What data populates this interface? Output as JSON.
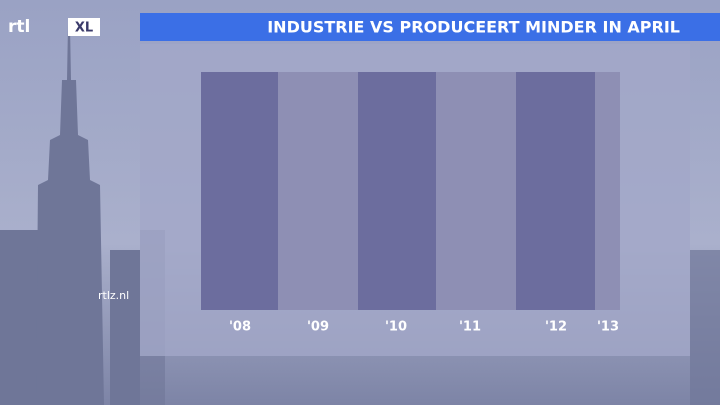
{
  "logo": {
    "main": "rtl",
    "box": "XL"
  },
  "watermark": "rtlz.nl",
  "chart_data": {
    "type": "band",
    "title": "INDUSTRIE VS PRODUCEERT MINDER IN APRIL",
    "categories": [
      "'08",
      "'09",
      "'10",
      "'11",
      "'12",
      "'13"
    ],
    "colors": [
      "#6c6d9e",
      "#8e8fb4"
    ]
  }
}
